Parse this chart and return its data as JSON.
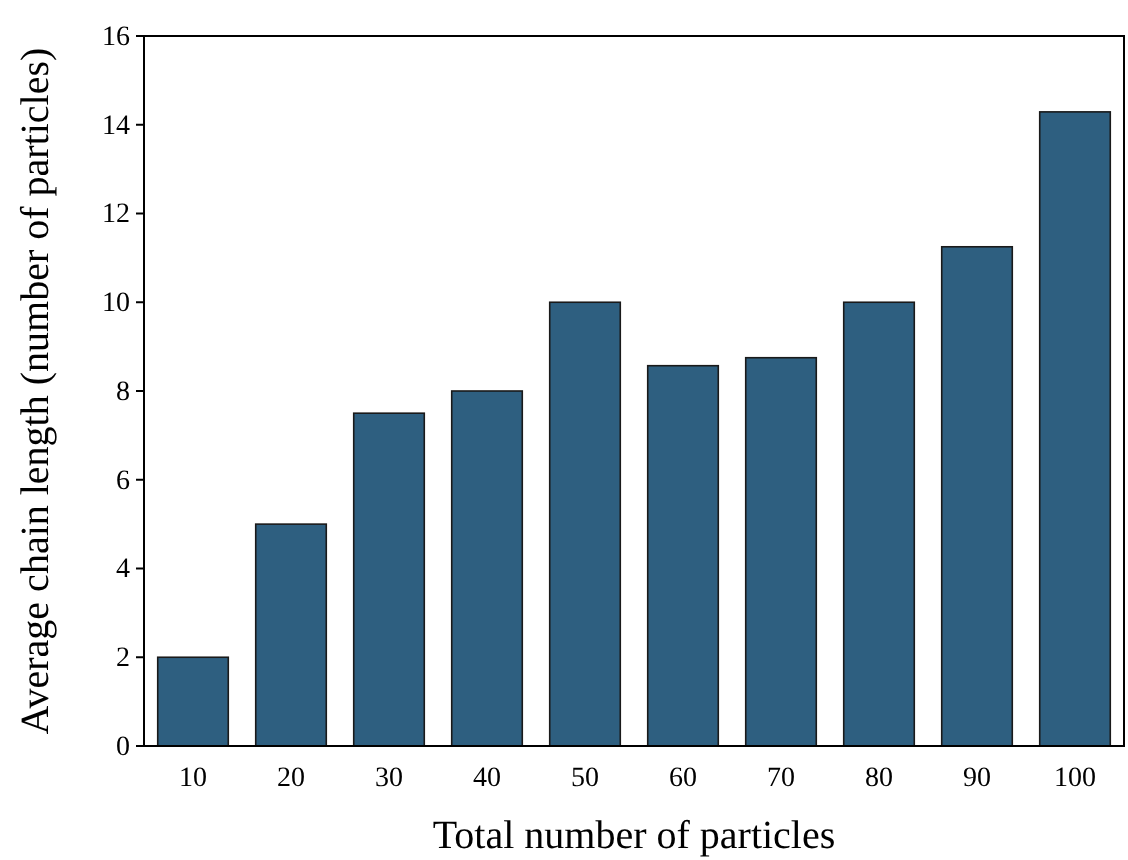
{
  "chart_data": {
    "type": "bar",
    "xlabel": "Total number of particles",
    "ylabel": "Average chain length (number of particles)",
    "categories": [
      "10",
      "20",
      "30",
      "40",
      "50",
      "60",
      "70",
      "80",
      "90",
      "100"
    ],
    "values": [
      2,
      5,
      7.5,
      8,
      10,
      8.57,
      8.75,
      10,
      11.25,
      14.29
    ],
    "color": "#2e5f80",
    "ylim": [
      0,
      16
    ],
    "yticks": [
      0,
      2,
      4,
      6,
      8,
      10,
      12,
      14,
      16
    ],
    "grid": false,
    "legend": false
  }
}
